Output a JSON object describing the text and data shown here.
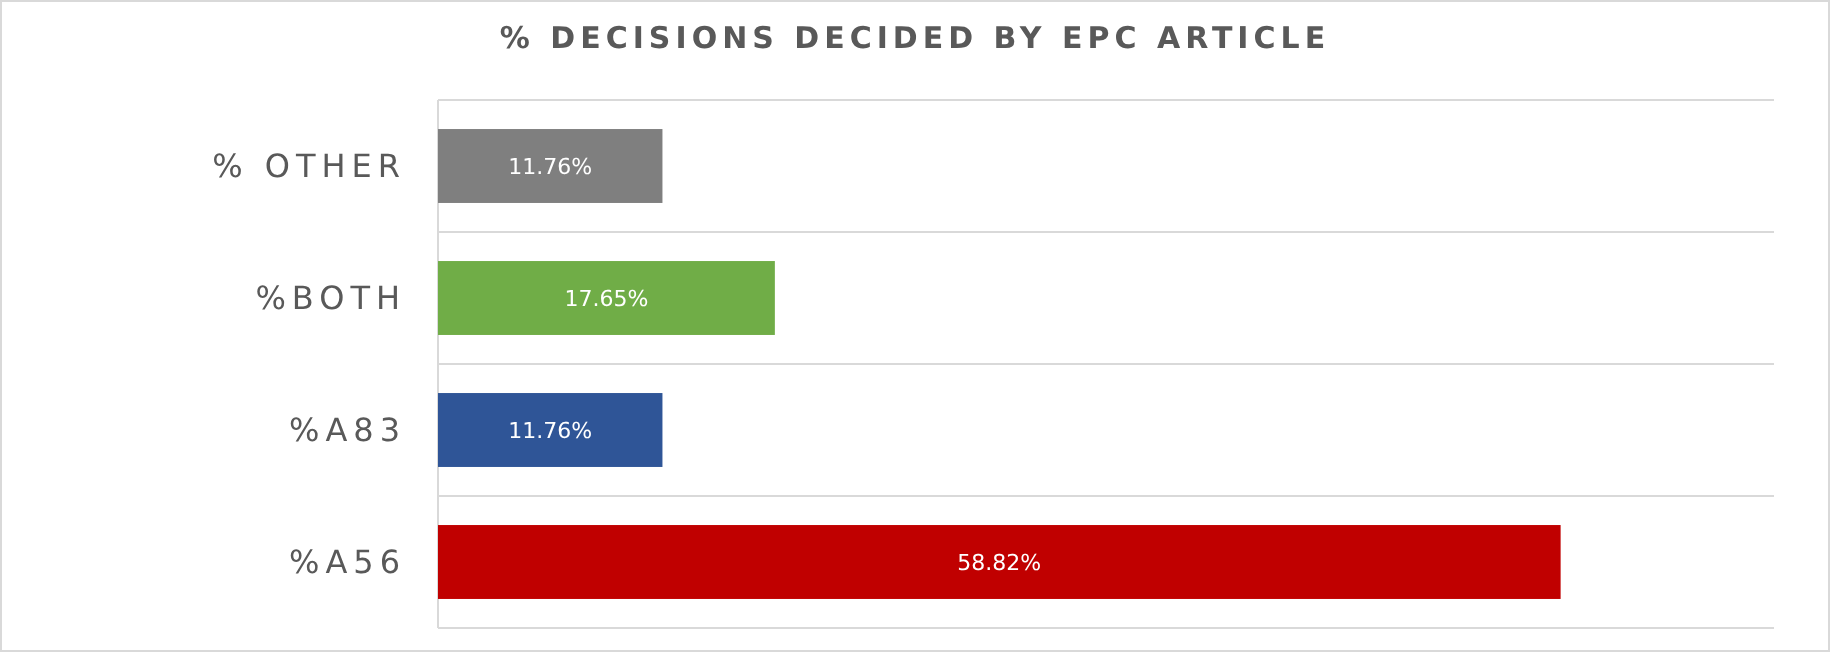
{
  "chart_data": {
    "type": "bar",
    "orientation": "horizontal",
    "title": "% DECISIONS DECIDED BY EPC ARTICLE",
    "categories": [
      "% OTHER",
      "%BOTH",
      "%A83",
      "%A56"
    ],
    "values": [
      11.76,
      17.65,
      11.76,
      58.82
    ],
    "colors": [
      "#7f7f7f",
      "#70ad47",
      "#2f5597",
      "#c00000"
    ],
    "value_labels": [
      "11.76%",
      "17.65%",
      "11.76%",
      "58.82%"
    ],
    "xlim": [
      0,
      70
    ],
    "grid": "y"
  }
}
